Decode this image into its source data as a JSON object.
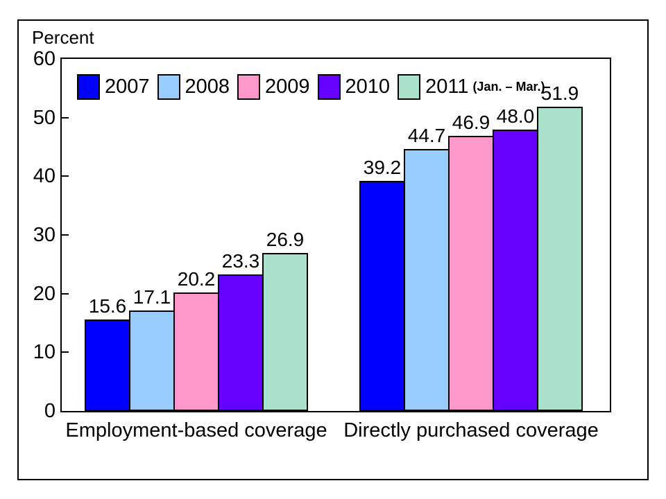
{
  "window": {
    "background": "#FFFFFF",
    "frame_border_color": "#000000"
  },
  "chart_data": {
    "type": "bar",
    "title": "",
    "y_axis_label": "Percent",
    "xlabel": "",
    "ylim": [
      0,
      60
    ],
    "yticks": [
      0,
      10,
      20,
      30,
      40,
      50,
      60
    ],
    "grid": false,
    "legend_position": "top-inside",
    "bar_outline_color": "#000000",
    "categories": [
      "Employment-based coverage",
      "Directly purchased coverage"
    ],
    "series": [
      {
        "name": "2007",
        "legend_suffix": "",
        "color": "#0000FF",
        "values": [
          15.6,
          39.2
        ],
        "labels": [
          "15.6",
          "39.2"
        ]
      },
      {
        "name": "2008",
        "legend_suffix": "",
        "color": "#99CCFF",
        "values": [
          17.1,
          44.7
        ],
        "labels": [
          "17.1",
          "44.7"
        ]
      },
      {
        "name": "2009",
        "legend_suffix": "",
        "color": "#FF99CC",
        "values": [
          20.2,
          46.9
        ],
        "labels": [
          "20.2",
          "46.9"
        ]
      },
      {
        "name": "2010",
        "legend_suffix": "",
        "color": "#6600FF",
        "values": [
          23.3,
          48.0
        ],
        "labels": [
          "23.3",
          "48.0"
        ]
      },
      {
        "name": "2011",
        "legend_suffix": "(Jan. – Mar.)",
        "color": "#AAE1CA",
        "values": [
          26.9,
          51.9
        ],
        "labels": [
          "26.9",
          "51.9"
        ]
      }
    ]
  }
}
